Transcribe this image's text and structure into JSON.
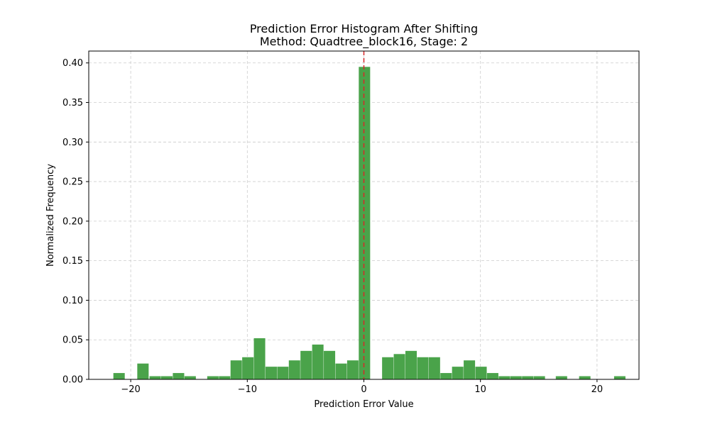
{
  "chart_data": {
    "type": "bar",
    "title": "Prediction Error Histogram After Shifting",
    "subtitle": "Method: Quadtree_block16, Stage: 2",
    "xlabel": "Prediction Error Value",
    "ylabel": "Normalized Frequency",
    "xlim": [
      -23.6,
      23.6
    ],
    "ylim": [
      0,
      0.415
    ],
    "grid": true,
    "bar_color": "#4aa34a",
    "reference_line": {
      "x": 0,
      "color": "#d62728",
      "style": "dashed"
    },
    "xticks": [
      {
        "value": -20,
        "label": "−20"
      },
      {
        "value": -10,
        "label": "−10"
      },
      {
        "value": 0,
        "label": "0"
      },
      {
        "value": 10,
        "label": "10"
      },
      {
        "value": 20,
        "label": "20"
      }
    ],
    "yticks": [
      {
        "value": 0.0,
        "label": "0.00"
      },
      {
        "value": 0.05,
        "label": "0.05"
      },
      {
        "value": 0.1,
        "label": "0.10"
      },
      {
        "value": 0.15,
        "label": "0.15"
      },
      {
        "value": 0.2,
        "label": "0.20"
      },
      {
        "value": 0.25,
        "label": "0.25"
      },
      {
        "value": 0.3,
        "label": "0.30"
      },
      {
        "value": 0.35,
        "label": "0.35"
      },
      {
        "value": 0.4,
        "label": "0.40"
      }
    ],
    "bin_width": 0.976,
    "bins": [
      {
        "x": -21.0,
        "value": 0.008
      },
      {
        "x": -18.95,
        "value": 0.02
      },
      {
        "x": -17.9,
        "value": 0.004
      },
      {
        "x": -16.9,
        "value": 0.004
      },
      {
        "x": -15.9,
        "value": 0.008
      },
      {
        "x": -14.9,
        "value": 0.004
      },
      {
        "x": -12.95,
        "value": 0.004
      },
      {
        "x": -11.95,
        "value": 0.004
      },
      {
        "x": -10.95,
        "value": 0.024
      },
      {
        "x": -9.95,
        "value": 0.028
      },
      {
        "x": -8.95,
        "value": 0.052
      },
      {
        "x": -7.95,
        "value": 0.016
      },
      {
        "x": -6.95,
        "value": 0.016
      },
      {
        "x": -5.95,
        "value": 0.024
      },
      {
        "x": -4.95,
        "value": 0.036
      },
      {
        "x": -3.95,
        "value": 0.044
      },
      {
        "x": -2.95,
        "value": 0.036
      },
      {
        "x": -1.95,
        "value": 0.02
      },
      {
        "x": -0.95,
        "value": 0.024
      },
      {
        "x": 0.05,
        "value": 0.395
      },
      {
        "x": 2.05,
        "value": 0.028
      },
      {
        "x": 3.05,
        "value": 0.032
      },
      {
        "x": 4.05,
        "value": 0.036
      },
      {
        "x": 5.05,
        "value": 0.028
      },
      {
        "x": 6.05,
        "value": 0.028
      },
      {
        "x": 7.05,
        "value": 0.008
      },
      {
        "x": 8.05,
        "value": 0.016
      },
      {
        "x": 9.05,
        "value": 0.024
      },
      {
        "x": 10.05,
        "value": 0.016
      },
      {
        "x": 11.05,
        "value": 0.008
      },
      {
        "x": 12.05,
        "value": 0.004
      },
      {
        "x": 13.05,
        "value": 0.004
      },
      {
        "x": 14.05,
        "value": 0.004
      },
      {
        "x": 15.05,
        "value": 0.004
      },
      {
        "x": 16.95,
        "value": 0.004
      },
      {
        "x": 18.95,
        "value": 0.004
      },
      {
        "x": 21.95,
        "value": 0.004
      }
    ]
  }
}
